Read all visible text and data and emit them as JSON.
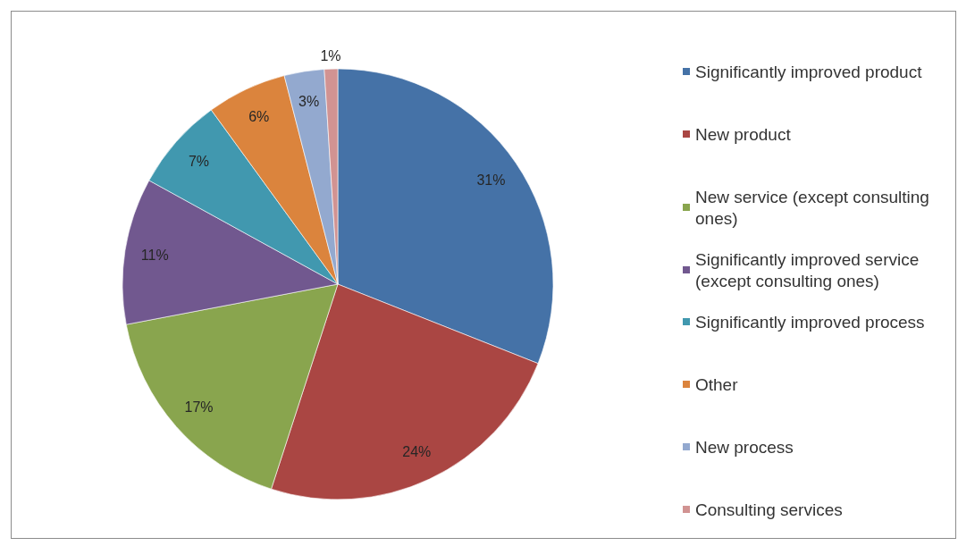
{
  "chart_data": {
    "type": "pie",
    "categories": [
      "Significantly improved product",
      "New product",
      "New service (except consulting ones)",
      "Significantly improved service (except consulting ones)",
      "Significantly improved process",
      "Other",
      "New process",
      "Consulting services"
    ],
    "values": [
      31,
      24,
      17,
      11,
      7,
      6,
      3,
      1
    ],
    "colors": [
      "#4572a7",
      "#aa4643",
      "#89a54e",
      "#71588f",
      "#4198af",
      "#db843d",
      "#93a9cf",
      "#d19392"
    ],
    "value_labels": [
      "31%",
      "24%",
      "17%",
      "11%",
      "7%",
      "6%",
      "3%",
      "1%"
    ],
    "legend": "right"
  }
}
